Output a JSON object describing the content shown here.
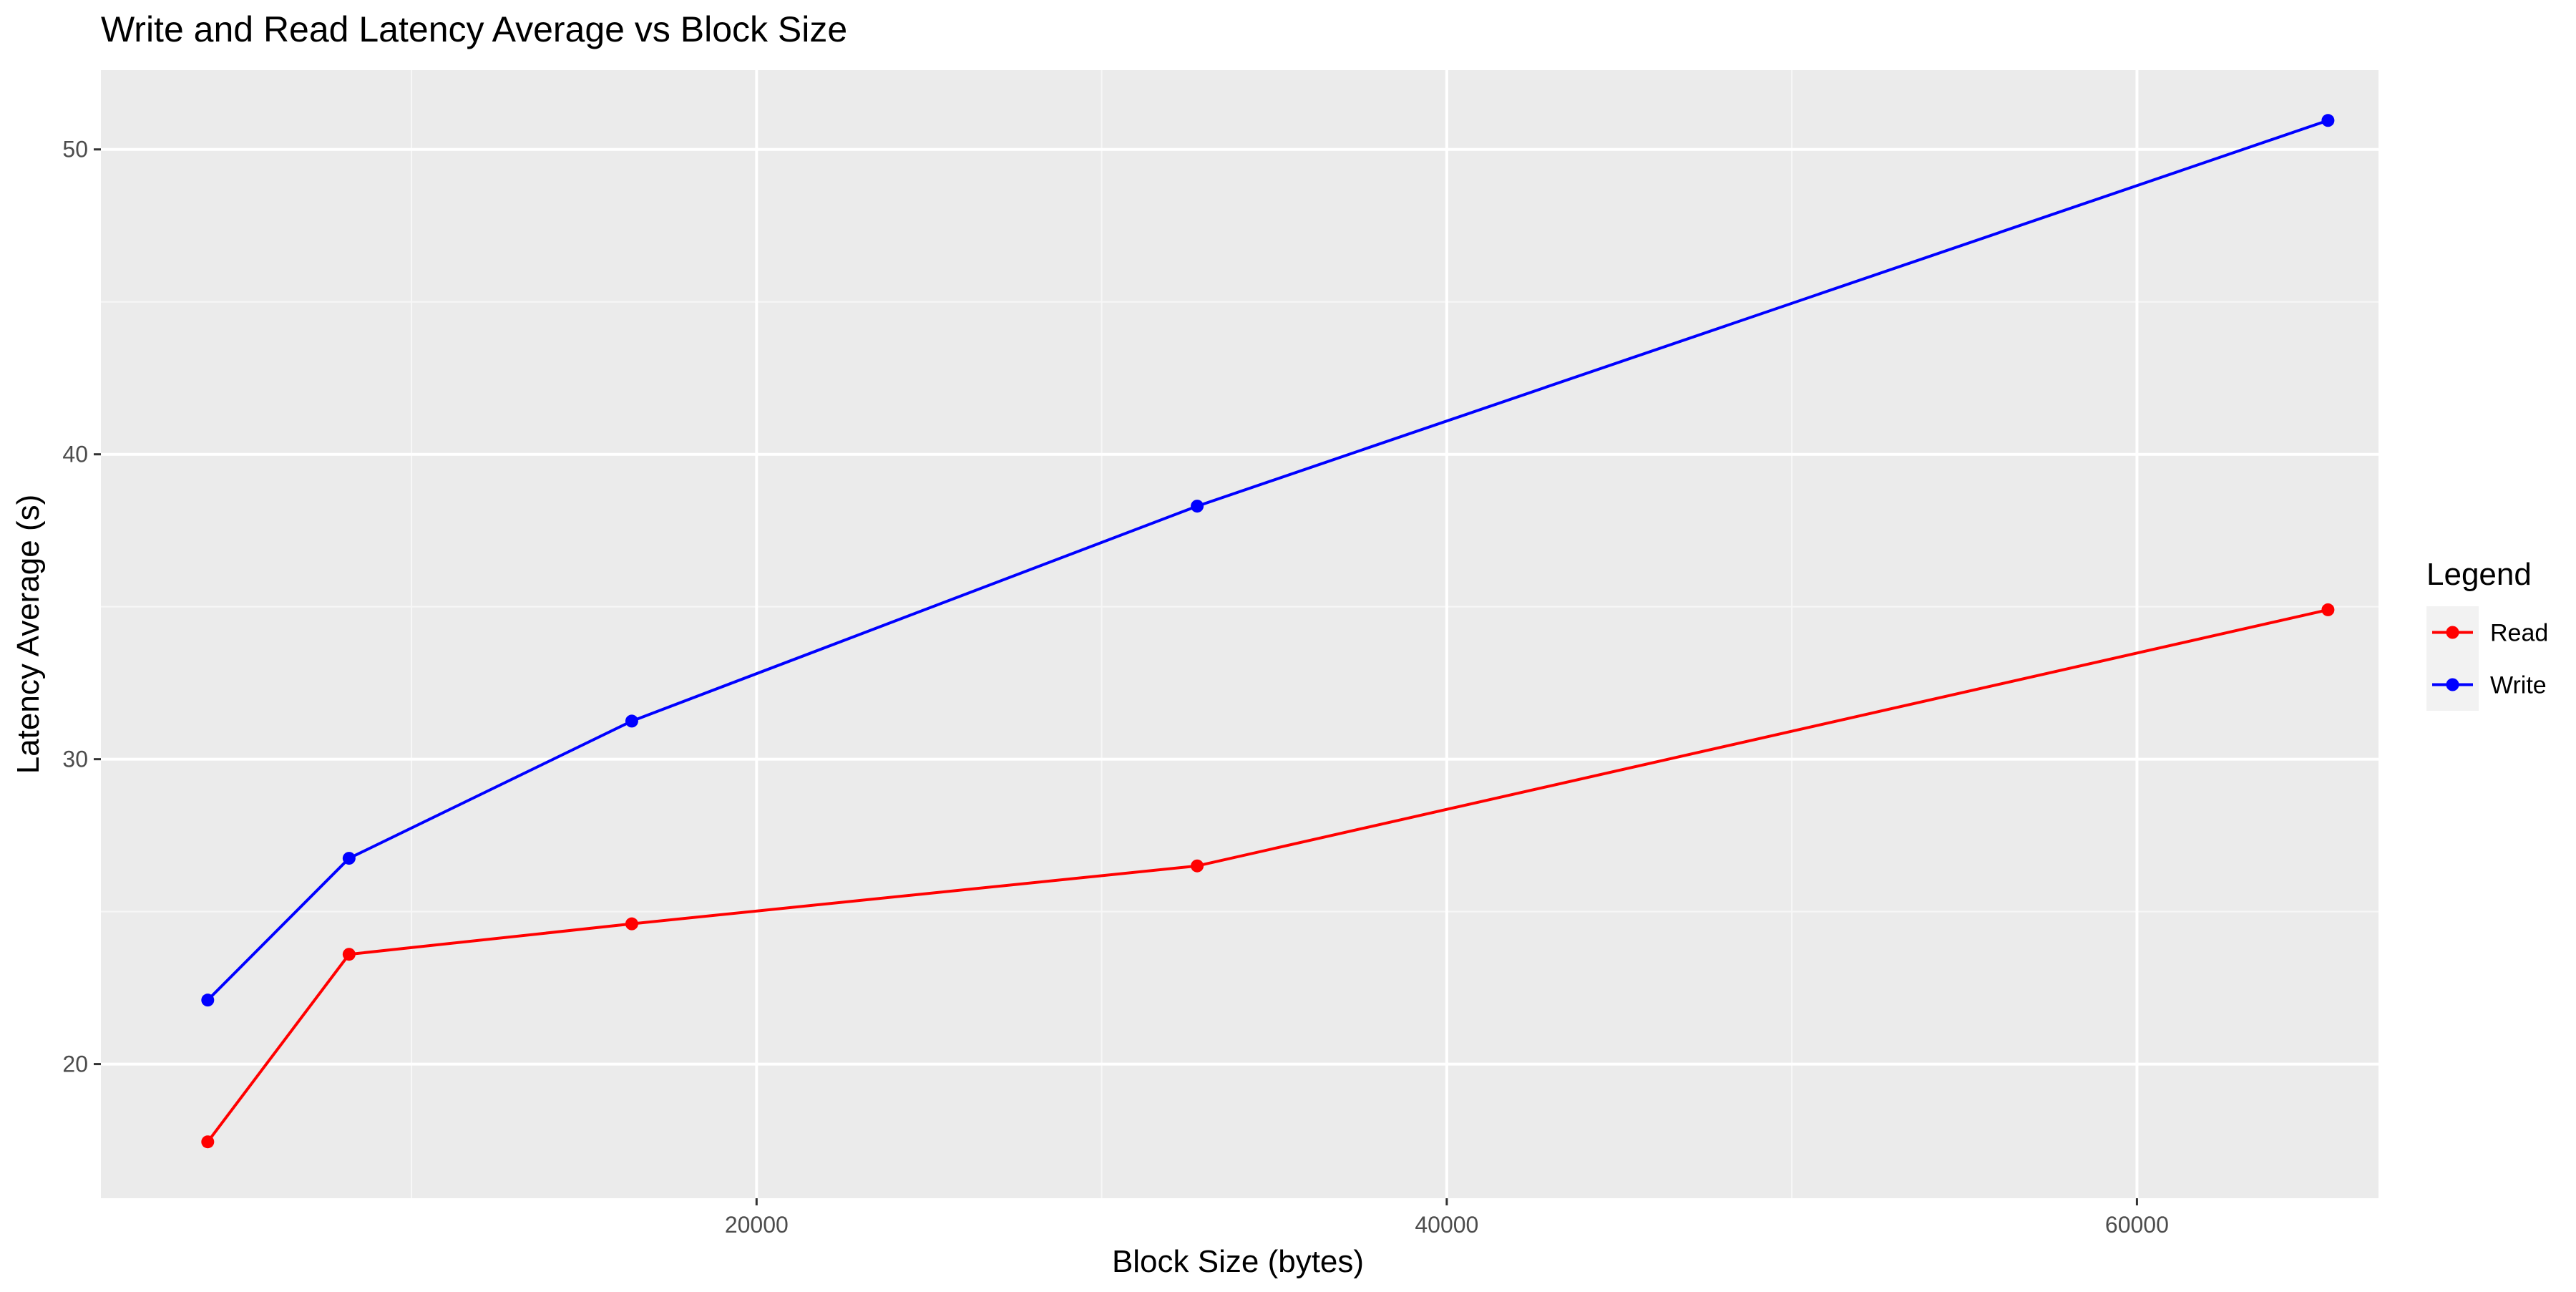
{
  "chart_data": {
    "type": "line",
    "title": "Write and Read Latency Average vs Block Size",
    "xlabel": "Block Size (bytes)",
    "ylabel": "Latency Average (s)",
    "xlim": [
      1000,
      67000
    ],
    "ylim": [
      15.6,
      52.6
    ],
    "x_ticks": [
      20000,
      40000,
      60000
    ],
    "x_minor_ticks": [
      10000,
      30000,
      50000
    ],
    "y_ticks": [
      20,
      30,
      40,
      50
    ],
    "y_minor_ticks": [
      25,
      35,
      45
    ],
    "x_tick_labels": [
      "20000",
      "40000",
      "60000"
    ],
    "y_tick_labels": [
      "20",
      "30",
      "40",
      "50"
    ],
    "grid": true,
    "legend": {
      "title": "Legend",
      "position": "right"
    },
    "x": [
      4096,
      8192,
      16384,
      32768,
      65536
    ],
    "series": [
      {
        "name": "Read",
        "color": "#ff0000",
        "values": [
          17.45,
          23.6,
          24.6,
          26.5,
          34.9
        ]
      },
      {
        "name": "Write",
        "color": "#0000ff",
        "values": [
          22.1,
          26.75,
          31.25,
          38.3,
          50.95
        ]
      }
    ],
    "colors": {
      "panel_background": "#ebebeb",
      "grid_major": "#ffffff",
      "grid_minor": "#f7f7f7",
      "axis_text": "#4d4d4d",
      "title_text": "#000000",
      "legend_key_background": "#f2f2f2"
    }
  }
}
